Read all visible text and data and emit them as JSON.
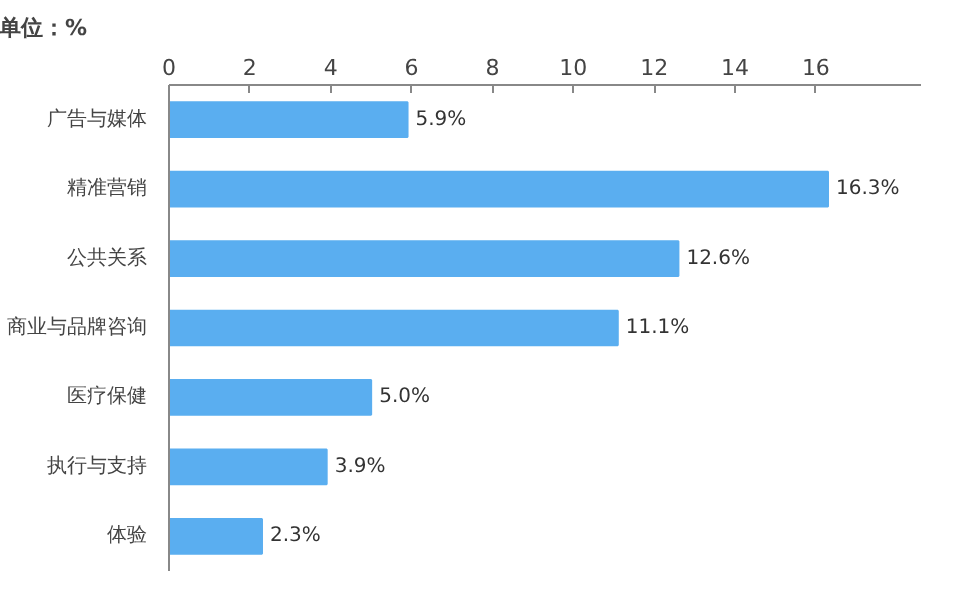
{
  "chart_data": {
    "type": "bar",
    "orientation": "horizontal",
    "title": "单位：%",
    "categories": [
      "广告与媒体",
      "精准营销",
      "公共关系",
      "商业与品牌咨询",
      "医疗保健",
      "执行与支持",
      "体验"
    ],
    "values": [
      5.9,
      16.3,
      12.6,
      11.1,
      5.0,
      3.9,
      2.3
    ],
    "value_labels": [
      "5.9%",
      "16.3%",
      "12.6%",
      "11.1%",
      "5.0%",
      "3.9%",
      "2.3%"
    ],
    "color": "#5aaef0",
    "xlim": [
      0,
      18.6
    ],
    "xticks": [
      0,
      2,
      4,
      6,
      8,
      10,
      12,
      14,
      16
    ],
    "grid": false
  }
}
